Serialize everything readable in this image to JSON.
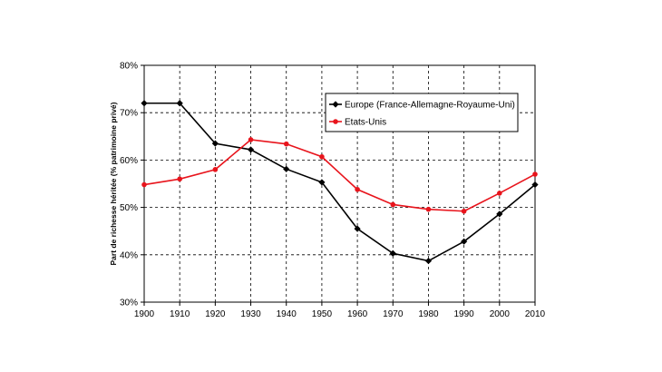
{
  "chart_data": {
    "type": "line",
    "title": "",
    "xlabel": "",
    "ylabel": "Part de richesse héritée (% patrimoine privé)",
    "x": [
      1900,
      1910,
      1920,
      1930,
      1940,
      1950,
      1960,
      1970,
      1980,
      1990,
      2000,
      2010
    ],
    "x_tick_labels": [
      "1900",
      "1910",
      "1920",
      "1930",
      "1940",
      "1950",
      "1960",
      "1970",
      "1980",
      "1990",
      "2000",
      "2010"
    ],
    "ylim": [
      0.3,
      0.8
    ],
    "y_ticks": [
      0.3,
      0.4,
      0.5,
      0.6,
      0.7,
      0.8
    ],
    "y_tick_labels": [
      "30%",
      "40%",
      "50%",
      "60%",
      "70%",
      "80%"
    ],
    "grid": "dashed",
    "legend_position": "top-right",
    "series": [
      {
        "name": "Europe (France-Allemagne-Royaume-Uni)",
        "color": "#000000",
        "marker": "diamond",
        "values": [
          0.72,
          0.72,
          0.635,
          0.622,
          0.581,
          0.553,
          0.455,
          0.403,
          0.387,
          0.428,
          0.486,
          0.548
        ]
      },
      {
        "name": "Etats-Unis",
        "color": "#e8141c",
        "marker": "circle",
        "values": [
          0.548,
          0.56,
          0.58,
          0.643,
          0.634,
          0.607,
          0.538,
          0.506,
          0.496,
          0.492,
          0.53,
          0.57
        ]
      }
    ]
  }
}
